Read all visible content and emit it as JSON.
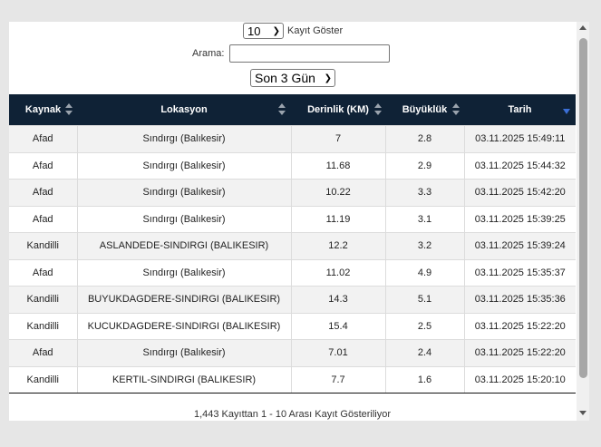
{
  "controls": {
    "length_value": "10",
    "length_label": "Kayıt Göster",
    "search_label": "Arama:",
    "search_value": "",
    "period_value": "Son 3 Gün"
  },
  "table": {
    "headers": [
      "Kaynak",
      "Lokasyon",
      "Derinlik (KM)",
      "Büyüklük",
      "Tarih"
    ],
    "rows": [
      [
        "Afad",
        "Sındırgı (Balıkesir)",
        "7",
        "2.8",
        "03.11.2025 15:49:11"
      ],
      [
        "Afad",
        "Sındırgı (Balıkesir)",
        "11.68",
        "2.9",
        "03.11.2025 15:44:32"
      ],
      [
        "Afad",
        "Sındırgı (Balıkesir)",
        "10.22",
        "3.3",
        "03.11.2025 15:42:20"
      ],
      [
        "Afad",
        "Sındırgı (Balıkesir)",
        "11.19",
        "3.1",
        "03.11.2025 15:39:25"
      ],
      [
        "Kandilli",
        "ASLANDEDE-SINDIRGI (BALIKESIR)",
        "12.2",
        "3.2",
        "03.11.2025 15:39:24"
      ],
      [
        "Afad",
        "Sındırgı (Balıkesir)",
        "11.02",
        "4.9",
        "03.11.2025 15:35:37"
      ],
      [
        "Kandilli",
        "BUYUKDAGDERE-SINDIRGI (BALIKESIR)",
        "14.3",
        "5.1",
        "03.11.2025 15:35:36"
      ],
      [
        "Kandilli",
        "KUCUKDAGDERE-SINDIRGI (BALIKESIR)",
        "15.4",
        "2.5",
        "03.11.2025 15:22:20"
      ],
      [
        "Afad",
        "Sındırgı (Balıkesir)",
        "7.01",
        "2.4",
        "03.11.2025 15:22:20"
      ],
      [
        "Kandilli",
        "KERTIL-SINDIRGI (BALIKESIR)",
        "7.7",
        "1.6",
        "03.11.2025 15:20:10"
      ]
    ]
  },
  "info_text": "1,443 Kayıttan 1 - 10 Arası Kayıt Gösteriliyor"
}
